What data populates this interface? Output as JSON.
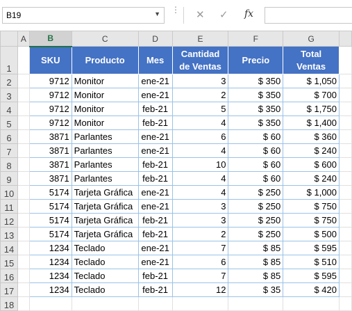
{
  "formula_bar": {
    "name_box": "B19",
    "cancel_icon": "✕",
    "enter_icon": "✓",
    "fx_label": "fx",
    "formula": ""
  },
  "sheet": {
    "columns": [
      "A",
      "B",
      "C",
      "D",
      "E",
      "F",
      "G"
    ],
    "selected_column": "B",
    "row_numbers": [
      "1",
      "2",
      "3",
      "4",
      "5",
      "6",
      "7",
      "8",
      "9",
      "10",
      "11",
      "12",
      "13",
      "14",
      "15",
      "16",
      "17",
      "18"
    ],
    "header": {
      "sku": "SKU",
      "producto": "Producto",
      "mes": "Mes",
      "cantidad": "Cantidad de Ventas",
      "precio": "Precio",
      "total": "Total Ventas"
    },
    "rows": [
      {
        "sku": "9712",
        "producto": "Monitor",
        "mes": "ene-21",
        "cantidad": "3",
        "precio": "$ 350",
        "total": "$ 1,050"
      },
      {
        "sku": "9712",
        "producto": "Monitor",
        "mes": "ene-21",
        "cantidad": "2",
        "precio": "$ 350",
        "total": "$ 700"
      },
      {
        "sku": "9712",
        "producto": "Monitor",
        "mes": "feb-21",
        "cantidad": "5",
        "precio": "$ 350",
        "total": "$ 1,750"
      },
      {
        "sku": "9712",
        "producto": "Monitor",
        "mes": "feb-21",
        "cantidad": "4",
        "precio": "$ 350",
        "total": "$ 1,400"
      },
      {
        "sku": "3871",
        "producto": "Parlantes",
        "mes": "ene-21",
        "cantidad": "6",
        "precio": "$ 60",
        "total": "$ 360"
      },
      {
        "sku": "3871",
        "producto": "Parlantes",
        "mes": "ene-21",
        "cantidad": "4",
        "precio": "$ 60",
        "total": "$ 240"
      },
      {
        "sku": "3871",
        "producto": "Parlantes",
        "mes": "feb-21",
        "cantidad": "10",
        "precio": "$ 60",
        "total": "$ 600"
      },
      {
        "sku": "3871",
        "producto": "Parlantes",
        "mes": "feb-21",
        "cantidad": "4",
        "precio": "$ 60",
        "total": "$ 240"
      },
      {
        "sku": "5174",
        "producto": "Tarjeta Gráfica",
        "mes": "ene-21",
        "cantidad": "4",
        "precio": "$ 250",
        "total": "$ 1,000"
      },
      {
        "sku": "5174",
        "producto": "Tarjeta Gráfica",
        "mes": "ene-21",
        "cantidad": "3",
        "precio": "$ 250",
        "total": "$ 750"
      },
      {
        "sku": "5174",
        "producto": "Tarjeta Gráfica",
        "mes": "feb-21",
        "cantidad": "3",
        "precio": "$ 250",
        "total": "$ 750"
      },
      {
        "sku": "5174",
        "producto": "Tarjeta Gráfica",
        "mes": "feb-21",
        "cantidad": "2",
        "precio": "$ 250",
        "total": "$ 500"
      },
      {
        "sku": "1234",
        "producto": "Teclado",
        "mes": "ene-21",
        "cantidad": "7",
        "precio": "$ 85",
        "total": "$ 595"
      },
      {
        "sku": "1234",
        "producto": "Teclado",
        "mes": "ene-21",
        "cantidad": "6",
        "precio": "$ 85",
        "total": "$ 510"
      },
      {
        "sku": "1234",
        "producto": "Teclado",
        "mes": "feb-21",
        "cantidad": "7",
        "precio": "$ 85",
        "total": "$ 595"
      },
      {
        "sku": "1234",
        "producto": "Teclado",
        "mes": "feb-21",
        "cantidad": "12",
        "precio": "$ 35",
        "total": "$ 420"
      }
    ]
  },
  "colors": {
    "header_fill": "#4472c4",
    "header_text": "#ffffff",
    "table_border": "#9bc2e6",
    "selection_accent": "#217346"
  }
}
